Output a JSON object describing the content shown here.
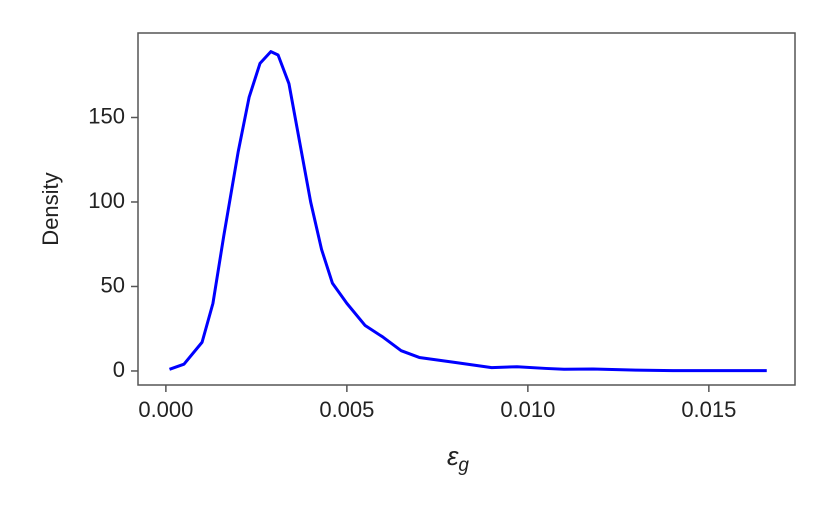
{
  "chart_data": {
    "type": "line",
    "ylabel": "Density",
    "xlabel": [
      "ε",
      "g"
    ],
    "x": [
      0.0001,
      0.0005,
      0.001,
      0.0013,
      0.0016,
      0.002,
      0.0023,
      0.0026,
      0.0029,
      0.0031,
      0.0034,
      0.0037,
      0.004,
      0.0043,
      0.0046,
      0.005,
      0.0055,
      0.006,
      0.0065,
      0.007,
      0.008,
      0.009,
      0.0097,
      0.0105,
      0.011,
      0.0118,
      0.013,
      0.014,
      0.0166
    ],
    "series": [
      {
        "color": "#0000ff",
        "values": [
          1,
          4,
          17,
          40,
          80,
          130,
          162,
          182,
          189,
          187,
          170,
          135,
          100,
          72,
          52,
          40,
          27,
          20,
          12,
          8,
          5,
          2,
          2.5,
          1.5,
          1,
          1.2,
          0.5,
          0.2,
          0.2
        ]
      }
    ],
    "xlim": [
      -0.00077,
      0.01738
    ],
    "ylim": [
      -8.3,
      200
    ],
    "xticks": [
      {
        "value": 0,
        "label": "0.000"
      },
      {
        "value": 0.005,
        "label": "0.005"
      },
      {
        "value": 0.01,
        "label": "0.010"
      },
      {
        "value": 0.015,
        "label": "0.015"
      }
    ],
    "yticks": [
      0,
      50,
      100,
      150
    ]
  }
}
